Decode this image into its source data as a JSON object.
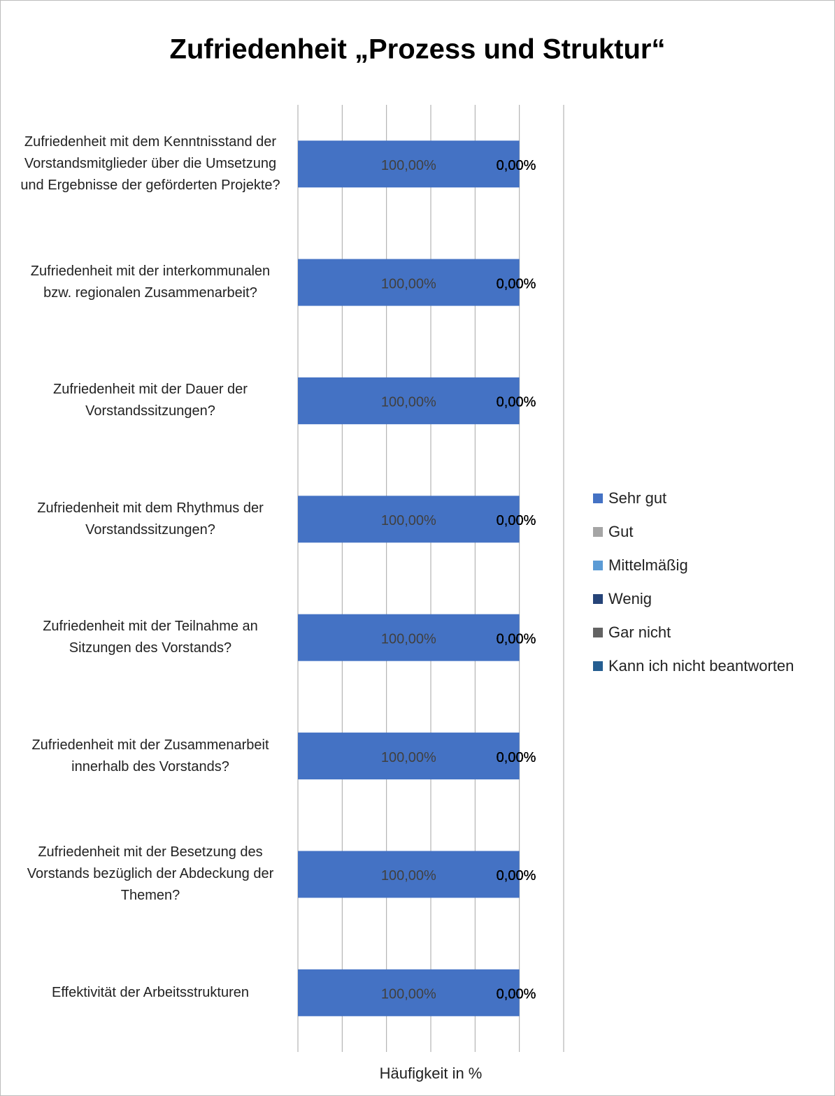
{
  "chart_data": {
    "type": "stacked_hbar",
    "title": "Zufriedenheit „Prozess und Struktur“",
    "x_axis_label": "Häufigkeit in %",
    "categories": [
      "Zufriedenheit mit dem Kenntnisstand der Vorstandsmitglieder über die Umsetzung und Ergebnisse der geförderten Projekte?",
      "Zufriedenheit mit der interkommunalen bzw. regionalen Zusammenarbeit?",
      "Zufriedenheit mit der Dauer der Vorstandssitzungen?",
      "Zufriedenheit mit dem Rhythmus der Vorstandssitzungen?",
      "Zufriedenheit mit der Teilnahme an Sitzungen des Vorstands?",
      "Zufriedenheit mit der Zusammenarbeit innerhalb des Vorstands?",
      "Zufriedenheit mit der Besetzung des Vorstands bezüglich der Abdeckung der Themen?",
      "Effektivität der Arbeitsstrukturen"
    ],
    "series": [
      {
        "name": "Sehr gut",
        "color": "#4472c4",
        "values": [
          100,
          100,
          100,
          100,
          100,
          100,
          100,
          100
        ],
        "value_labels": [
          "100,00%",
          "100,00%",
          "100,00%",
          "100,00%",
          "100,00%",
          "100,00%",
          "100,00%",
          "100,00%"
        ]
      },
      {
        "name": "Gut",
        "color": "#a5a5a5",
        "values": [
          0,
          0,
          0,
          0,
          0,
          0,
          0,
          0
        ],
        "value_labels": [
          "0,00%",
          "0,00%",
          "0,00%",
          "0,00%",
          "0,00%",
          "0,00%",
          "0,00%",
          "0,00%"
        ]
      },
      {
        "name": "Mittelmäßig",
        "color": "#5b9bd5",
        "values": [
          0,
          0,
          0,
          0,
          0,
          0,
          0,
          0
        ],
        "value_labels": [
          "0,00%",
          "0,00%",
          "0,00%",
          "0,00%",
          "0,00%",
          "0,00%",
          "0,00%",
          "0,00%"
        ]
      },
      {
        "name": "Wenig",
        "color": "#264478",
        "values": [
          0,
          0,
          0,
          0,
          0,
          0,
          0,
          0
        ],
        "value_labels": [
          "0,00%",
          "0,00%",
          "0,00%",
          "0,00%",
          "0,00%",
          "0,00%",
          "0,00%",
          "0,00%"
        ]
      },
      {
        "name": "Gar nicht",
        "color": "#636363",
        "values": [
          0,
          0,
          0,
          0,
          0,
          0,
          0,
          0
        ],
        "value_labels": [
          "0,00%",
          "0,00%",
          "0,00%",
          "0,00%",
          "0,00%",
          "0,00%",
          "0,00%",
          "0,00%"
        ]
      },
      {
        "name": "Kann ich nicht beantworten",
        "color": "#255e91",
        "values": [
          0,
          0,
          0,
          0,
          0,
          0,
          0,
          0
        ],
        "value_labels": [
          "0,00%",
          "0,00%",
          "0,00%",
          "0,00%",
          "0,00%",
          "0,00%",
          "0,00%",
          "0,00%"
        ]
      }
    ],
    "xlim": [
      0,
      120
    ],
    "xticks": [
      0,
      20,
      40,
      60,
      80,
      100,
      120
    ],
    "grid": true,
    "legend": "right"
  }
}
